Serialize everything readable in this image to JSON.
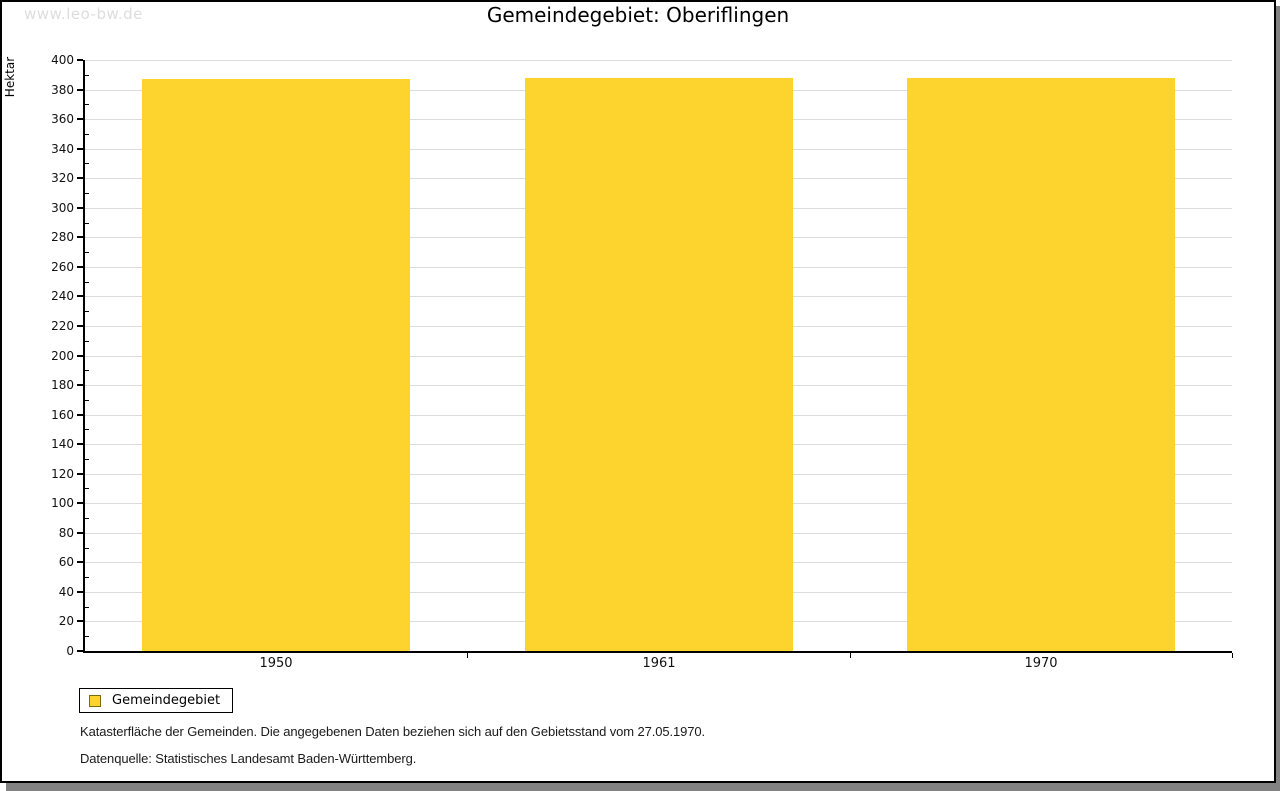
{
  "watermark": "www.leo-bw.de",
  "title": "Gemeindegebiet: Oberiflingen",
  "chart_data": {
    "type": "bar",
    "title": "Gemeindegebiet: Oberiflingen",
    "categories": [
      "1950",
      "1961",
      "1970"
    ],
    "series": [
      {
        "name": "Gemeindegebiet",
        "values": [
          387,
          388,
          388
        ]
      }
    ],
    "xlabel": "",
    "ylabel": "Hektar",
    "ylim": [
      0,
      400
    ],
    "ytick_step": 20,
    "yminor_step": 10,
    "grid": true,
    "legend_position": "bottom-left",
    "bar_color": "#FCD42D"
  },
  "legend": {
    "label": "Gemeindegebiet",
    "swatch_color": "#FCD42D",
    "swatch_border": "#7d6a10"
  },
  "footer": {
    "line1": "Katasterfläche der Gemeinden. Die angegebenen Daten beziehen sich auf den Gebietsstand vom 27.05.1970.",
    "line2": "Datenquelle: Statistisches Landesamt Baden-Württemberg."
  },
  "colors": {
    "bar": "#FCD42D",
    "gridline": "#dcdcdc",
    "axis": "#000000",
    "watermark": "#dddddd",
    "shadow": "#828282"
  }
}
